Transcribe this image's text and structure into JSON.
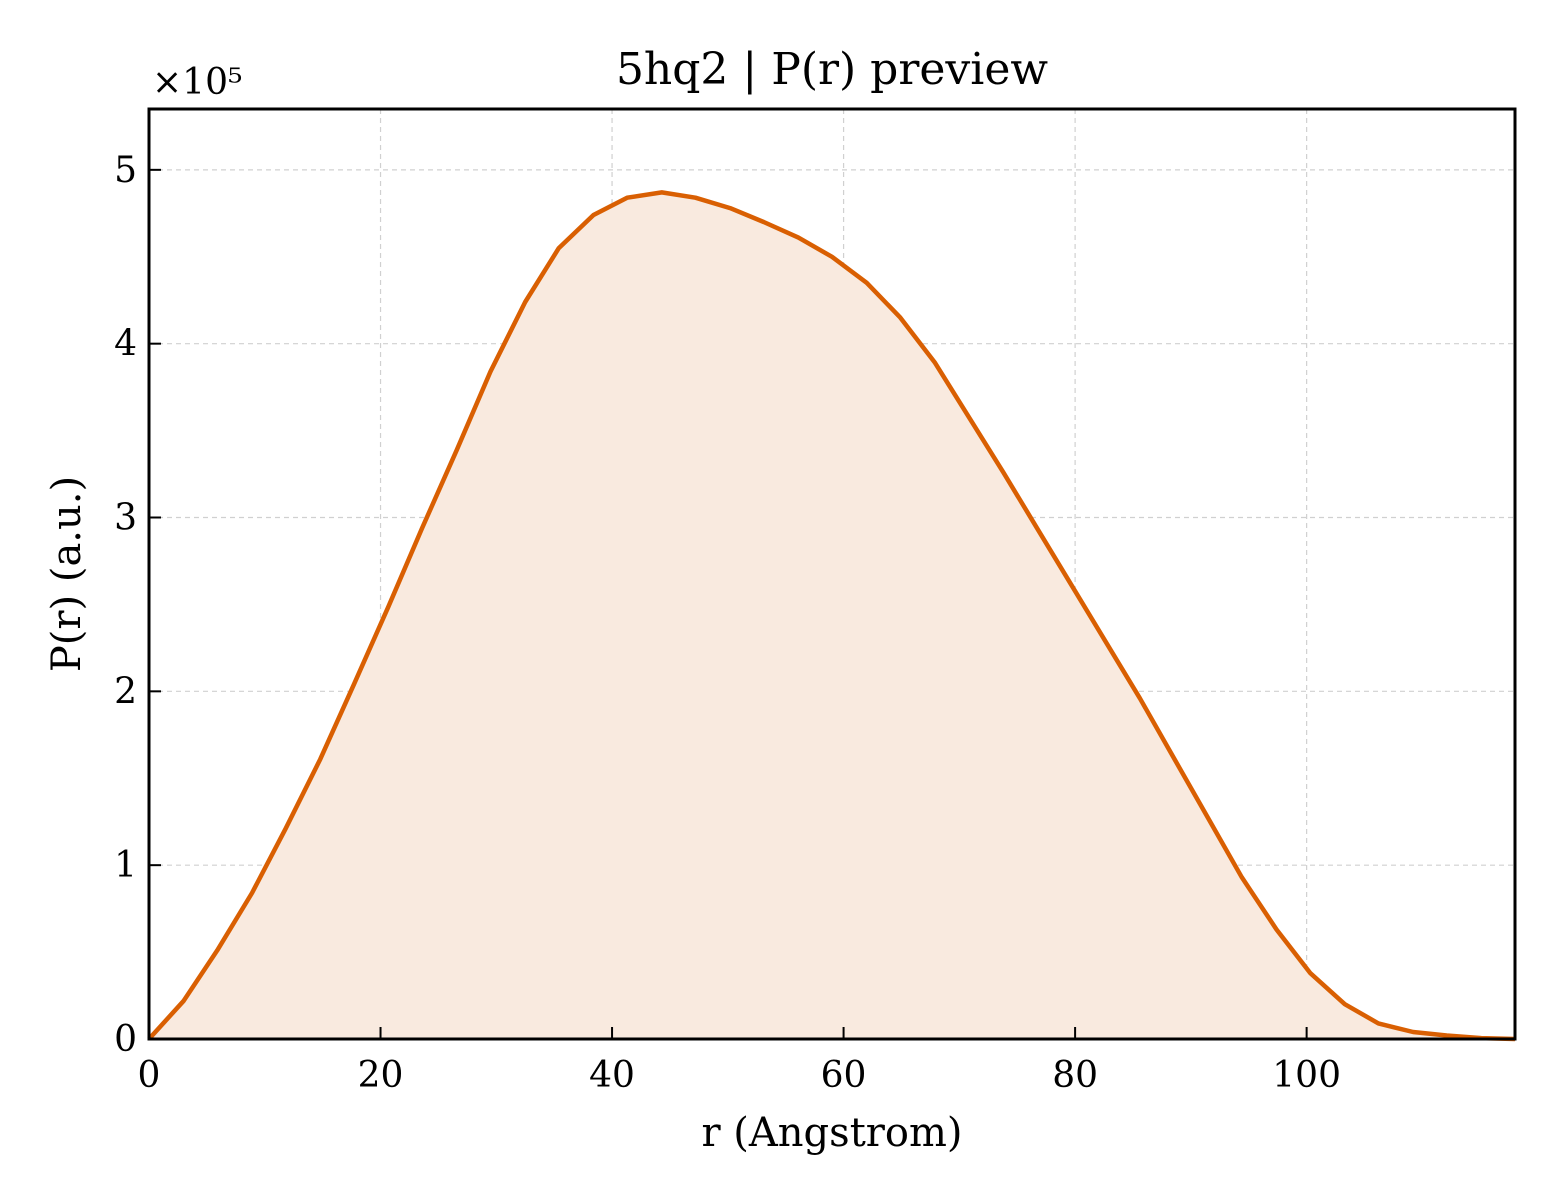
{
  "chart_data": {
    "type": "area",
    "title": "5hq2 | P(r) preview",
    "xlabel": "r (Angstrom)",
    "ylabel": "P(r) (a.u.)",
    "y_multiplier_label": "×10⁵",
    "y_scale": 100000,
    "xlim": [
      0,
      118
    ],
    "ylim": [
      0,
      5.35
    ],
    "x_ticks": [
      0,
      20,
      40,
      60,
      80,
      100
    ],
    "y_ticks": [
      0,
      1,
      2,
      3,
      4,
      5
    ],
    "grid": true,
    "line_color": "#d95f02",
    "fill_color": "#f9eadf",
    "series": [
      {
        "x": [
          0,
          3,
          5.9,
          8.9,
          11.8,
          14.8,
          17.7,
          20.7,
          23.6,
          26.6,
          29.5,
          32.5,
          35.4,
          38.4,
          41.3,
          44.3,
          47.2,
          50.2,
          53.1,
          56.1,
          59,
          62,
          64.9,
          67.9,
          70.8,
          73.8,
          76.7,
          79.7,
          82.6,
          85.6,
          88.5,
          91.5,
          94.4,
          97.4,
          100.3,
          103.3,
          106.2,
          109.2,
          112.1,
          115.1,
          118
        ],
        "y": [
          0,
          0.22,
          0.51,
          0.84,
          1.21,
          1.61,
          2.04,
          2.49,
          2.94,
          3.39,
          3.84,
          4.24,
          4.55,
          4.74,
          4.84,
          4.87,
          4.84,
          4.78,
          4.7,
          4.61,
          4.5,
          4.35,
          4.15,
          3.89,
          3.58,
          3.26,
          2.94,
          2.61,
          2.29,
          1.96,
          1.62,
          1.27,
          0.93,
          0.63,
          0.38,
          0.2,
          0.09,
          0.04,
          0.02,
          0.005,
          0.0
        ]
      }
    ]
  }
}
